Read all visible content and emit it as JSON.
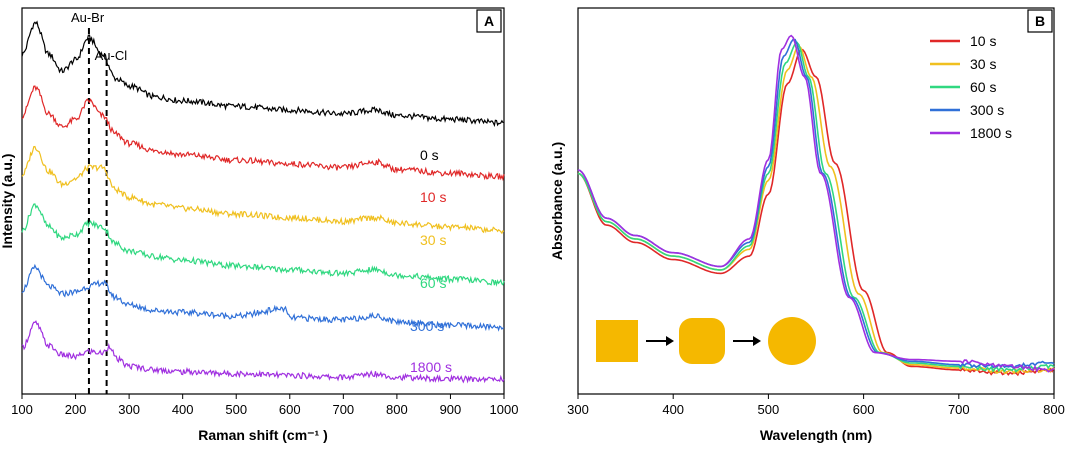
{
  "chart_data": [
    {
      "panel": "A",
      "type": "line",
      "xlabel": "Raman shift (cm⁻¹ )",
      "ylabel": "Intensity (a.u.)",
      "xlim": [
        100,
        1000
      ],
      "xticks": [
        "100",
        "200",
        "300",
        "400",
        "500",
        "600",
        "700",
        "800",
        "900",
        "1000"
      ],
      "yticks_shown": false,
      "grid": false,
      "annotations": [
        {
          "label": "Au-Br",
          "x": 225
        },
        {
          "label": "Au-Cl",
          "x": 258
        }
      ],
      "series": [
        {
          "name": "0 s",
          "color": "#000000",
          "offset": 100,
          "x": [
            100,
            125,
            150,
            175,
            200,
            225,
            250,
            275,
            300,
            350,
            400,
            500,
            600,
            700,
            760,
            800,
            900,
            1000
          ],
          "y": [
            75,
            92,
            75,
            66,
            72,
            84,
            75,
            62,
            58,
            52,
            50,
            47,
            45,
            43,
            45,
            42,
            40,
            38
          ]
        },
        {
          "name": "10 s",
          "color": "#e02828",
          "offset": 80,
          "x": [
            100,
            125,
            150,
            175,
            200,
            225,
            250,
            275,
            300,
            350,
            400,
            500,
            600,
            700,
            760,
            800,
            900,
            1000
          ],
          "y": [
            62,
            77,
            63,
            56,
            60,
            70,
            62,
            52,
            47,
            43,
            41,
            38,
            36,
            34,
            37,
            33,
            31,
            29
          ]
        },
        {
          "name": "30 s",
          "color": "#f0c020",
          "offset": 60,
          "x": [
            100,
            125,
            150,
            175,
            200,
            225,
            250,
            275,
            300,
            350,
            400,
            500,
            600,
            700,
            760,
            800,
            900,
            1000
          ],
          "y": [
            50,
            65,
            52,
            45,
            48,
            54,
            54,
            42,
            38,
            34,
            32,
            29,
            27,
            25,
            27,
            24,
            22,
            20
          ]
        },
        {
          "name": "60 s",
          "color": "#30d880",
          "offset": 40,
          "x": [
            100,
            125,
            150,
            175,
            200,
            225,
            250,
            275,
            300,
            350,
            400,
            500,
            600,
            700,
            760,
            800,
            900,
            1000
          ],
          "y": [
            40,
            54,
            42,
            36,
            38,
            44,
            42,
            33,
            29,
            26,
            24,
            21,
            19,
            17,
            19,
            16,
            14,
            12
          ]
        },
        {
          "name": "300 s",
          "color": "#3070d8",
          "offset": 20,
          "x": [
            100,
            125,
            150,
            175,
            200,
            225,
            250,
            275,
            300,
            350,
            400,
            500,
            590,
            600,
            700,
            760,
            800,
            900,
            1000
          ],
          "y": [
            28,
            40,
            30,
            26,
            27,
            30,
            32,
            24,
            20,
            17,
            16,
            14,
            18,
            13,
            12,
            14,
            11,
            9,
            8
          ]
        },
        {
          "name": "1800 s",
          "color": "#a030e0",
          "offset": 0,
          "x": [
            100,
            125,
            150,
            175,
            200,
            225,
            250,
            265,
            275,
            300,
            350,
            400,
            500,
            600,
            700,
            760,
            800,
            900,
            1000
          ],
          "y": [
            17,
            30,
            18,
            13,
            12,
            15,
            14,
            18,
            11,
            7,
            5,
            4,
            3,
            2,
            1,
            3,
            1,
            0,
            0
          ]
        }
      ]
    },
    {
      "panel": "B",
      "type": "line",
      "xlabel": "Wavelength (nm)",
      "ylabel": "Absorbance (a.u.)",
      "xlim": [
        300,
        800
      ],
      "xticks": [
        "300",
        "400",
        "500",
        "600",
        "700",
        "800"
      ],
      "yticks_shown": false,
      "grid": false,
      "legend": "top-right",
      "inset": [
        "cube",
        "rounded cube",
        "sphere"
      ],
      "inset_color": "#f5b800",
      "series": [
        {
          "name": "10 s",
          "color": "#e02828",
          "x": [
            300,
            330,
            360,
            400,
            450,
            480,
            500,
            520,
            535,
            550,
            570,
            600,
            625,
            650,
            700,
            750,
            800
          ],
          "y": [
            0.62,
            0.47,
            0.42,
            0.37,
            0.33,
            0.38,
            0.56,
            0.88,
            0.98,
            0.9,
            0.65,
            0.28,
            0.1,
            0.06,
            0.05,
            0.04,
            0.05
          ]
        },
        {
          "name": "30 s",
          "color": "#f0c020",
          "x": [
            300,
            330,
            360,
            400,
            450,
            480,
            500,
            520,
            532,
            545,
            565,
            595,
            620,
            650,
            700,
            750,
            800
          ],
          "y": [
            0.62,
            0.48,
            0.43,
            0.38,
            0.34,
            0.4,
            0.6,
            0.92,
            0.99,
            0.9,
            0.64,
            0.27,
            0.1,
            0.065,
            0.055,
            0.045,
            0.05
          ]
        },
        {
          "name": "60 s",
          "color": "#30d880",
          "x": [
            300,
            330,
            360,
            400,
            450,
            480,
            500,
            518,
            530,
            542,
            560,
            590,
            617,
            650,
            700,
            750,
            800
          ],
          "y": [
            0.62,
            0.48,
            0.43,
            0.38,
            0.34,
            0.41,
            0.62,
            0.94,
            1.0,
            0.9,
            0.62,
            0.26,
            0.1,
            0.07,
            0.06,
            0.05,
            0.06
          ]
        },
        {
          "name": "300 s",
          "color": "#3070d8",
          "x": [
            300,
            330,
            360,
            400,
            450,
            480,
            500,
            516,
            527,
            540,
            557,
            587,
            615,
            650,
            700,
            750,
            800
          ],
          "y": [
            0.63,
            0.49,
            0.44,
            0.39,
            0.35,
            0.42,
            0.64,
            0.96,
            1.01,
            0.9,
            0.62,
            0.26,
            0.1,
            0.075,
            0.065,
            0.06,
            0.07
          ]
        },
        {
          "name": "1800 s",
          "color": "#a030e0",
          "x": [
            300,
            330,
            360,
            400,
            450,
            480,
            500,
            514,
            524,
            538,
            555,
            585,
            612,
            650,
            700,
            750,
            800
          ],
          "y": [
            0.63,
            0.49,
            0.44,
            0.39,
            0.35,
            0.43,
            0.66,
            0.98,
            1.02,
            0.9,
            0.62,
            0.26,
            0.1,
            0.08,
            0.075,
            0.06,
            0.05
          ]
        }
      ]
    }
  ]
}
